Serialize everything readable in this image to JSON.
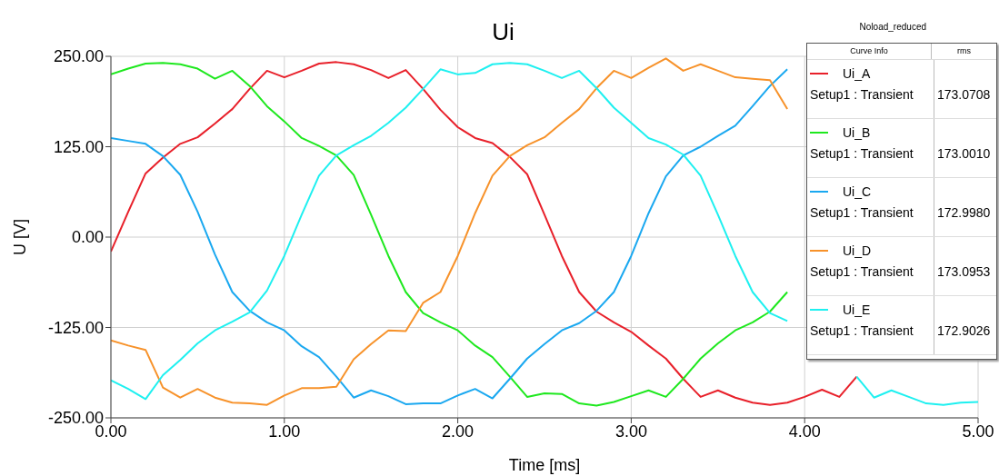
{
  "chart_data": {
    "type": "line",
    "title": "Ui",
    "xlabel": "Time [ms]",
    "ylabel": "U [V]",
    "x": [
      0,
      0.1,
      0.2,
      0.3,
      0.4,
      0.5,
      0.6,
      0.7,
      0.8,
      0.9,
      1.0,
      1.1,
      1.2,
      1.3,
      1.4,
      1.5,
      1.6,
      1.7,
      1.8,
      1.9,
      2.0,
      2.1,
      2.2,
      2.3,
      2.4,
      2.5,
      2.6,
      2.7,
      2.8,
      2.9,
      3.0,
      3.1,
      3.2,
      3.3,
      3.4,
      3.5,
      3.6,
      3.7,
      3.8,
      3.9,
      4.0,
      4.1,
      4.2,
      4.3,
      4.4,
      4.5,
      4.6,
      4.7,
      4.8,
      4.9,
      5.0
    ],
    "series": [
      {
        "name": "Ui_A",
        "color": "#e8202a",
        "values": [
          -20,
          35,
          88,
          110,
          129,
          138,
          157,
          177,
          205,
          230,
          221,
          230,
          240,
          242,
          239,
          231,
          220,
          231,
          205,
          176,
          152,
          137,
          130,
          111,
          87,
          31,
          -26,
          -76,
          -103,
          -118,
          -131,
          -150,
          -168,
          -196,
          -221,
          -212,
          -222,
          -229,
          -232,
          -229,
          -221,
          -211,
          -221,
          -193,
          null,
          null,
          null,
          null,
          null,
          null,
          null
        ]
      },
      {
        "name": "Ui_B",
        "color": "#1ee81e",
        "values": [
          225,
          233,
          240,
          241,
          239,
          233,
          219,
          230,
          209,
          181,
          160,
          137,
          126,
          113,
          86,
          31,
          -26,
          -76,
          -105,
          -118,
          -129,
          -150,
          -166,
          -193,
          -221,
          -216,
          -217,
          -230,
          -233,
          -228,
          -220,
          -212,
          -221,
          -196,
          -168,
          -147,
          -129,
          -118,
          -103,
          -76,
          null,
          null,
          null,
          null,
          null,
          null,
          null,
          null,
          null,
          null,
          null
        ]
      },
      {
        "name": "Ui_C",
        "color": "#1aa8f0",
        "values": [
          137,
          133,
          129,
          112,
          86,
          35,
          -24,
          -76,
          -102,
          -118,
          -129,
          -151,
          -166,
          -193,
          -222,
          -212,
          -220,
          -231,
          -230,
          -230,
          -219,
          -210,
          -223,
          -196,
          -168,
          -148,
          -129,
          -119,
          -102,
          -76,
          -26,
          33,
          84,
          113,
          125,
          140,
          154,
          181,
          209,
          232,
          null,
          null,
          null,
          null,
          null,
          null,
          null,
          null,
          null,
          null,
          null
        ]
      },
      {
        "name": "Ui_D",
        "color": "#f7922a",
        "values": [
          -143,
          -150,
          -156,
          -208,
          -222,
          -210,
          -222,
          -229,
          -230,
          -232,
          -219,
          -209,
          -209,
          -207,
          -169,
          -148,
          -129,
          -130,
          -91,
          -76,
          -26,
          33,
          85,
          112,
          127,
          138,
          158,
          177,
          206,
          230,
          220,
          234,
          247,
          230,
          239,
          230,
          221,
          219,
          217,
          177,
          null,
          null,
          null,
          null,
          null,
          null,
          null,
          null,
          null,
          null,
          null
        ]
      },
      {
        "name": "Ui_E",
        "color": "#1ef0f0",
        "values": [
          -198,
          -210,
          -224,
          -191,
          -170,
          -147,
          -129,
          -117,
          -104,
          -74,
          -26,
          31,
          85,
          113,
          127,
          140,
          158,
          179,
          205,
          232,
          225,
          227,
          239,
          241,
          239,
          230,
          220,
          230,
          206,
          179,
          158,
          137,
          128,
          114,
          85,
          31,
          -26,
          -76,
          -105,
          -116,
          null,
          null,
          null,
          -193,
          -222,
          -212,
          -221,
          -230,
          -232,
          -229,
          -228
        ]
      }
    ],
    "xlim": [
      0,
      5
    ],
    "xticks": [
      {
        "value": 0,
        "label": "0.00"
      },
      {
        "value": 1,
        "label": "1.00"
      },
      {
        "value": 2,
        "label": "2.00"
      },
      {
        "value": 3,
        "label": "3.00"
      },
      {
        "value": 4,
        "label": "4.00"
      },
      {
        "value": 5,
        "label": "5.00"
      }
    ],
    "ylim": [
      -250,
      250
    ],
    "yticks": [
      {
        "value": -250,
        "label": "-250.00"
      },
      {
        "value": -125,
        "label": "-125.00"
      },
      {
        "value": 0,
        "label": "0.00"
      },
      {
        "value": 125,
        "label": "125.00"
      },
      {
        "value": 250,
        "label": "250.00"
      }
    ],
    "grid": true,
    "legend": "top right",
    "annotations": [
      "Noload_reduced",
      "Curve Info",
      "rms",
      "Setup1 : Transient",
      "173.0708",
      "Setup1 : Transient",
      "173.0010",
      "Setup1 : Transient",
      "172.9980",
      "Setup1 : Transient",
      "173.0953",
      "Setup1 : Transient",
      "172.9026"
    ]
  }
}
